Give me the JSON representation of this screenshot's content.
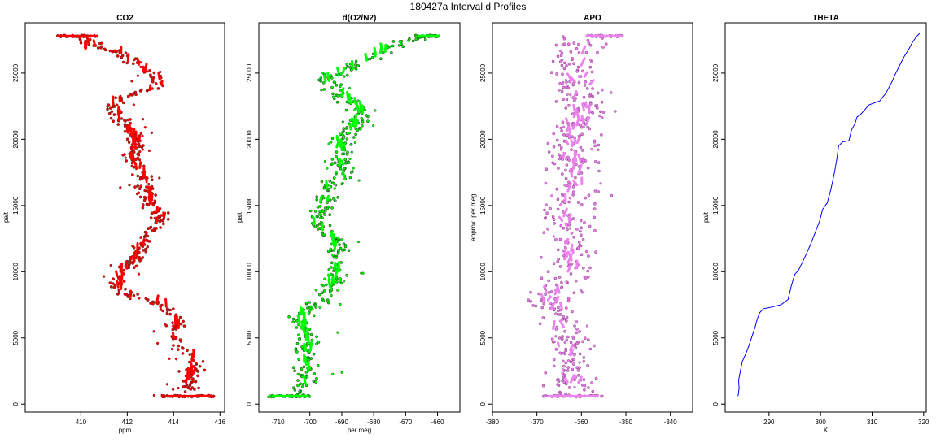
{
  "figure_title": "180427a   Interval d Profiles",
  "colors": {
    "co2": "#ff0000",
    "o2n2": "#00ff00",
    "apo": "#ee82ee",
    "theta": "#0000ff",
    "axis": "#000000"
  },
  "chart_data": [
    {
      "type": "scatter",
      "title": "CO2",
      "xlabel": "ppm",
      "ylabel": "palt",
      "xlim": [
        407.6,
        416.2
      ],
      "ylim": [
        -600,
        28800
      ],
      "xticks": [
        410,
        412,
        414,
        416
      ],
      "yticks": [
        0,
        5000,
        10000,
        15000,
        20000,
        25000
      ],
      "profile": [
        [
          414.6,
          600
        ],
        [
          414.7,
          2000
        ],
        [
          414.9,
          3500
        ],
        [
          414.0,
          5000
        ],
        [
          414.2,
          6500
        ],
        [
          413.5,
          7500
        ],
        [
          412.1,
          8200
        ],
        [
          411.5,
          9000
        ],
        [
          411.8,
          10000
        ],
        [
          412.3,
          11000
        ],
        [
          412.7,
          12000
        ],
        [
          413.0,
          13000
        ],
        [
          413.5,
          14000
        ],
        [
          413.0,
          15000
        ],
        [
          412.8,
          16500
        ],
        [
          412.6,
          17500
        ],
        [
          412.1,
          18500
        ],
        [
          412.4,
          20000
        ],
        [
          411.9,
          21000
        ],
        [
          411.3,
          22500
        ],
        [
          412.4,
          23500
        ],
        [
          413.4,
          24000
        ],
        [
          413.3,
          24500
        ],
        [
          412.5,
          25500
        ],
        [
          411.7,
          26500
        ],
        [
          410.3,
          27300
        ],
        [
          409.8,
          27800
        ]
      ],
      "clusters": [
        [
          414.7,
          600,
          1.2,
          0
        ],
        [
          409.8,
          27800,
          0.9,
          0
        ],
        [
          410.2,
          27300,
          0.1,
          400
        ]
      ],
      "seed": 11,
      "noise": 0.28,
      "count": 420,
      "outline_color": "#7f1c1c"
    },
    {
      "type": "scatter",
      "title": "d(O2/N2)",
      "xlabel": "per meg",
      "ylabel": "palt",
      "xlim": [
        -716,
        -653
      ],
      "ylim": [
        -600,
        28800
      ],
      "xticks": [
        -710,
        -700,
        -690,
        -680,
        -670,
        -660
      ],
      "yticks": [
        0,
        5000,
        10000,
        15000,
        20000,
        25000
      ],
      "profile": [
        [
          -704,
          600
        ],
        [
          -701,
          2000
        ],
        [
          -701,
          3500
        ],
        [
          -700,
          5000
        ],
        [
          -703,
          6500
        ],
        [
          -697,
          7800
        ],
        [
          -693,
          9000
        ],
        [
          -692,
          10000
        ],
        [
          -691,
          11500
        ],
        [
          -692,
          12500
        ],
        [
          -698,
          13500
        ],
        [
          -696,
          15000
        ],
        [
          -694,
          16500
        ],
        [
          -689,
          17500
        ],
        [
          -690,
          18500
        ],
        [
          -691,
          20000
        ],
        [
          -686,
          21000
        ],
        [
          -683,
          22000
        ],
        [
          -691,
          23500
        ],
        [
          -695,
          24500
        ],
        [
          -686,
          25500
        ],
        [
          -680,
          26300
        ],
        [
          -676,
          26800
        ],
        [
          -671,
          27300
        ],
        [
          -664,
          27800
        ]
      ],
      "clusters": [
        [
          -706,
          600,
          7,
          0
        ],
        [
          -663,
          27800,
          4,
          0
        ]
      ],
      "seed": 23,
      "noise": 2.6,
      "count": 420,
      "outline_color": "#1f5f1f"
    },
    {
      "type": "scatter",
      "title": "APO",
      "xlabel": "",
      "ylabel": "approx. per meg",
      "xlim": [
        -380,
        -335
      ],
      "ylim": [
        -600,
        28800
      ],
      "xticks": [
        -380,
        -370,
        -360,
        -350,
        -340
      ],
      "yticks": [
        0,
        5000,
        10000,
        15000,
        20000,
        25000
      ],
      "profile": [
        [
          -362,
          600
        ],
        [
          -362,
          3000
        ],
        [
          -364,
          5000
        ],
        [
          -366,
          7000
        ],
        [
          -367,
          8500
        ],
        [
          -363,
          10000
        ],
        [
          -362,
          12000
        ],
        [
          -364,
          14000
        ],
        [
          -361,
          16000
        ],
        [
          -362,
          18000
        ],
        [
          -362,
          20000
        ],
        [
          -360,
          22000
        ],
        [
          -360,
          24000
        ],
        [
          -361,
          26000
        ],
        [
          -360,
          27800
        ]
      ],
      "clusters": [
        [
          -362,
          600,
          7,
          0
        ],
        [
          -355,
          27800,
          5,
          0
        ]
      ],
      "seed": 37,
      "noise": 4.2,
      "count": 420,
      "outline_color": "#9a4d9a"
    },
    {
      "type": "line",
      "title": "THETA",
      "xlabel": "K",
      "ylabel": "palt",
      "xlim": [
        281.5,
        320.5
      ],
      "ylim": [
        -600,
        28800
      ],
      "xticks": [
        290,
        300,
        310,
        320
      ],
      "yticks": [
        0,
        5000,
        10000,
        15000,
        20000,
        25000
      ],
      "x": [
        284.0,
        284.2,
        284.1,
        284.5,
        284.8,
        285.5,
        286.0,
        286.6,
        287.3,
        287.7,
        288.2,
        288.9,
        290.2,
        292.3,
        293.7,
        294.3,
        295.0,
        295.7,
        296.6,
        298.0,
        299.0,
        299.8,
        300.4,
        301.3,
        302.0,
        302.7,
        303.2,
        303.5,
        304.3,
        305.5,
        306.0,
        306.7,
        307.1,
        307.6,
        308.3,
        309.4,
        311.5,
        312.7,
        313.8,
        314.6,
        315.5,
        316.3,
        317.1,
        317.8,
        318.5,
        319.2
      ],
      "y": [
        600,
        1200,
        1800,
        2600,
        3200,
        3800,
        4300,
        5000,
        5800,
        6400,
        6900,
        7200,
        7300,
        7500,
        7900,
        8900,
        9800,
        10100,
        10800,
        12000,
        13000,
        13800,
        14700,
        15200,
        16200,
        17500,
        18600,
        19500,
        19800,
        19900,
        20700,
        21200,
        21700,
        21800,
        22100,
        22600,
        22900,
        23500,
        24300,
        25000,
        25700,
        26300,
        26800,
        27300,
        27700,
        28000
      ]
    }
  ]
}
